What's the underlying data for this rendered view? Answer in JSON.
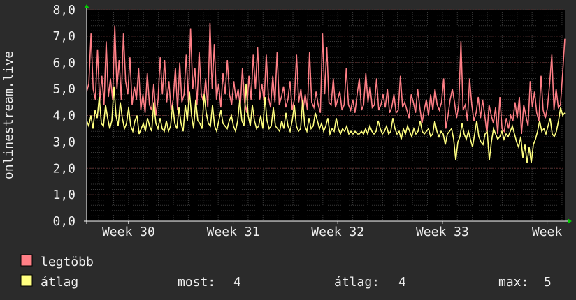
{
  "chart_data": {
    "type": "line",
    "title": "",
    "xlabel": "",
    "ylabel": "onlinestream.live",
    "ylim": [
      0,
      8
    ],
    "yticks": [
      "0,0",
      "1,0",
      "2,0",
      "3,0",
      "4,0",
      "5,0",
      "6,0",
      "7,0",
      "8,0"
    ],
    "xticks": [
      {
        "label": "Week 30",
        "x": 30
      },
      {
        "label": "Week 31",
        "x": 31
      },
      {
        "label": "Week 32",
        "x": 32
      },
      {
        "label": "Week 33",
        "x": 33
      },
      {
        "label": "Week",
        "x": 34
      }
    ],
    "xlim": [
      29.6,
      34.17
    ],
    "grid": true,
    "series": [
      {
        "name": "legtöbb",
        "color": "#ff7f86",
        "x_start": 29.6,
        "x_end": 34.17,
        "values": [
          4.9,
          5.2,
          7.1,
          5.0,
          4.6,
          6.5,
          4.5,
          5.5,
          4.4,
          6.8,
          4.7,
          5.4,
          4.6,
          7.4,
          5.0,
          6.1,
          4.6,
          7.1,
          5.3,
          4.8,
          6.2,
          4.4,
          5.1,
          4.6,
          5.8,
          4.2,
          4.8,
          4.1,
          5.6,
          4.4,
          4.2,
          5.2,
          4.0,
          4.6,
          6.2,
          4.8,
          6.1,
          4.5,
          5.3,
          4.2,
          4.6,
          5.8,
          4.2,
          6.0,
          4.5,
          4.8,
          6.3,
          4.5,
          7.3,
          5.0,
          5.8,
          4.4,
          6.4,
          4.8,
          4.5,
          5.4,
          4.3,
          7.5,
          5.0,
          6.7,
          4.6,
          5.2,
          4.3,
          5.6,
          4.8,
          6.1,
          4.8,
          4.4,
          5.3,
          4.6,
          5.0,
          4.3,
          5.8,
          4.5,
          4.1,
          5.5,
          4.6,
          6.3,
          5.0,
          6.6,
          4.6,
          5.2,
          4.5,
          6.3,
          4.7,
          4.3,
          5.5,
          4.5,
          6.4,
          4.4,
          4.7,
          5.1,
          4.3,
          4.6,
          5.3,
          4.2,
          4.6,
          6.3,
          4.5,
          5.0,
          4.2,
          4.8,
          4.2,
          6.4,
          4.5,
          4.3,
          4.9,
          4.4,
          4.1,
          7.1,
          4.8,
          6.6,
          4.5,
          4.4,
          5.4,
          4.3,
          4.6,
          4.9,
          4.2,
          4.4,
          5.8,
          4.4,
          4.2,
          4.6,
          4.1,
          4.8,
          5.4,
          4.2,
          4.4,
          5.6,
          4.5,
          5.1,
          4.3,
          4.4,
          5.4,
          4.2,
          4.4,
          4.8,
          4.3,
          5.0,
          4.1,
          4.3,
          4.8,
          4.1,
          4.2,
          5.5,
          4.3,
          4.5,
          4.2,
          3.9,
          4.8,
          4.5,
          4.1,
          5.0,
          4.3,
          3.7,
          4.2,
          4.6,
          4.0,
          4.8,
          4.2,
          5.0,
          4.4,
          4.2,
          4.5,
          5.4,
          3.5,
          4.0,
          4.6,
          5.0,
          4.5,
          3.9,
          4.4,
          6.8,
          4.2,
          4.4,
          3.8,
          5.4,
          4.4,
          3.8,
          4.1,
          4.7,
          3.9,
          4.6,
          4.0,
          3.3,
          4.4,
          4.0,
          3.7,
          4.3,
          3.3,
          4.7,
          3.5,
          3.4,
          3.9,
          3.5,
          4.0,
          3.8,
          4.5,
          3.9,
          4.7,
          3.3,
          4.4,
          4.0,
          3.6,
          5.3,
          4.3,
          4.9,
          4.1,
          3.8,
          5.5,
          4.2,
          3.9,
          4.3,
          5.2,
          6.3,
          4.2,
          5.0,
          4.3,
          4.4,
          5.6,
          6.9
        ]
      },
      {
        "name": "átlag",
        "color": "#ffff80",
        "x_start": 29.6,
        "x_end": 34.17,
        "values": [
          3.8,
          3.6,
          4.0,
          3.5,
          4.2,
          3.9,
          4.7,
          3.7,
          3.6,
          4.4,
          3.9,
          3.5,
          3.8,
          5.1,
          4.0,
          3.6,
          4.5,
          3.9,
          3.5,
          3.7,
          4.3,
          3.6,
          3.4,
          3.8,
          4.0,
          3.3,
          3.5,
          3.7,
          3.4,
          3.9,
          3.6,
          3.4,
          4.5,
          3.7,
          3.5,
          3.9,
          3.5,
          3.4,
          3.8,
          3.4,
          3.6,
          4.4,
          3.7,
          3.5,
          4.3,
          3.7,
          3.4,
          4.4,
          3.8,
          4.9,
          4.0,
          3.5,
          4.6,
          3.8,
          3.7,
          3.5,
          4.8,
          4.1,
          3.7,
          3.6,
          4.4,
          3.6,
          3.4,
          3.8,
          4.2,
          3.7,
          3.6,
          3.5,
          3.8,
          4.0,
          3.6,
          3.4,
          3.8,
          4.6,
          3.8,
          3.6,
          5.2,
          4.0,
          3.6,
          4.4,
          3.8,
          3.5,
          3.6,
          4.0,
          3.5,
          4.7,
          3.8,
          3.5,
          3.6,
          4.3,
          3.6,
          3.5,
          3.4,
          3.8,
          3.5,
          4.1,
          3.6,
          3.4,
          3.8,
          4.4,
          3.6,
          3.4,
          3.5,
          4.6,
          3.6,
          3.4,
          3.9,
          3.5,
          3.6,
          4.1,
          3.8,
          3.5,
          3.7,
          3.4,
          3.6,
          3.9,
          3.3,
          3.5,
          3.4,
          3.9,
          3.5,
          3.3,
          3.5,
          3.4,
          3.6,
          3.3,
          3.4,
          3.3,
          3.4,
          3.3,
          3.3,
          3.4,
          3.3,
          3.5,
          3.3,
          3.6,
          3.4,
          3.3,
          3.4,
          3.8,
          3.5,
          3.3,
          3.4,
          3.6,
          3.3,
          3.4,
          3.9,
          3.5,
          3.3,
          3.4,
          3.1,
          3.5,
          3.3,
          3.6,
          3.4,
          3.2,
          3.5,
          3.3,
          3.4,
          3.8,
          3.4,
          3.3,
          3.4,
          3.5,
          3.2,
          3.3,
          3.8,
          3.4,
          3.2,
          3.4,
          3.3,
          2.9,
          3.3,
          3.4,
          3.5,
          3.1,
          2.3,
          3.0,
          3.2,
          3.7,
          3.3,
          3.1,
          3.4,
          3.1,
          2.8,
          3.3,
          3.8,
          3.2,
          3.0,
          2.9,
          3.3,
          3.4,
          2.3,
          3.0,
          3.5,
          3.3,
          3.1,
          3.2,
          3.4,
          3.1,
          3.3,
          3.2,
          3.4,
          3.6,
          3.3,
          3.0,
          2.8,
          3.2,
          2.4,
          2.9,
          2.2,
          2.8,
          2.2,
          2.9,
          3.1,
          3.4,
          3.8,
          3.4,
          3.5,
          3.3,
          3.6,
          3.9,
          3.3,
          3.2,
          3.4,
          3.8,
          4.3,
          4.0,
          4.1
        ]
      }
    ]
  },
  "legend": {
    "max_label": "legtöbb",
    "avg_label": "átlag",
    "max_color": "#ff7f86",
    "avg_color": "#ffff80",
    "stats": [
      {
        "label": "most:",
        "value": "4"
      },
      {
        "label": "átlag:",
        "value": "4"
      },
      {
        "label": "max:",
        "value": "5"
      }
    ]
  }
}
